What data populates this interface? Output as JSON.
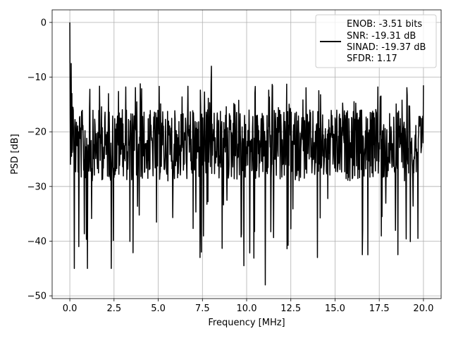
{
  "chart_data": {
    "type": "line",
    "xlabel": "Frequency [MHz]",
    "ylabel": "PSD [dB]",
    "xlim": [
      -1.0,
      21.0
    ],
    "ylim": [
      -50.5,
      2.3
    ],
    "xticks": [
      0.0,
      2.5,
      5.0,
      7.5,
      10.0,
      12.5,
      15.0,
      17.5,
      20.0
    ],
    "xtick_labels": [
      "0.0",
      "2.5",
      "5.0",
      "7.5",
      "10.0",
      "12.5",
      "15.0",
      "17.5",
      "20.0"
    ],
    "yticks": [
      0,
      -10,
      -20,
      -30,
      -40,
      -50
    ],
    "ytick_labels": [
      "0",
      "−10",
      "−20",
      "−30",
      "−40",
      "−50"
    ],
    "grid": true,
    "legend": {
      "placement": "top-right",
      "lines": [
        "ENOB: -3.51 bits",
        "SNR: -19.31 dB",
        "SINAD: -19.37 dB",
        "SFDR: 1.17"
      ]
    },
    "series": [
      {
        "color": "#000000",
        "x_start": 0.0,
        "x_end": 20.0,
        "num_points": 1025,
        "approx_band": {
          "upper_envelope": -12,
          "typical_upper": -15,
          "typical_lower": -28,
          "floor_dips": -48
        },
        "notable_points": [
          {
            "x": 0.0,
            "y": 0.0
          },
          {
            "x": 0.08,
            "y": -7.5
          },
          {
            "x": 0.12,
            "y": -13
          },
          {
            "x": 0.25,
            "y": -45
          },
          {
            "x": 0.5,
            "y": -41
          },
          {
            "x": 1.0,
            "y": -45
          },
          {
            "x": 2.35,
            "y": -45
          },
          {
            "x": 7.45,
            "y": -42
          },
          {
            "x": 8.0,
            "y": -8
          },
          {
            "x": 9.85,
            "y": -44.5
          },
          {
            "x": 11.05,
            "y": -48
          },
          {
            "x": 14.0,
            "y": -43
          },
          {
            "x": 16.85,
            "y": -42.5
          },
          {
            "x": 20.0,
            "y": -11.5
          }
        ]
      }
    ]
  },
  "colors": {
    "line": "#000000",
    "grid": "#b0b0b0",
    "axes": "#000000",
    "legend_border": "#cccccc"
  }
}
